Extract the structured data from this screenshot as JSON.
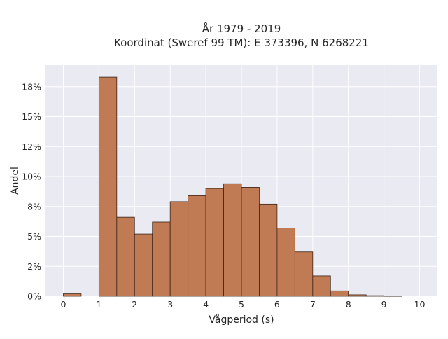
{
  "chart_data": {
    "type": "bar",
    "title_lines": [
      "År 1979 - 2019",
      "Koordinat (Sweref 99 TM): E 373396, N 6268221"
    ],
    "xlabel": "Vågperiod (s)",
    "ylabel": "Andel",
    "bin_width": 0.5,
    "xlim": [
      -0.5,
      10.5
    ],
    "ylim": [
      0,
      19.3
    ],
    "x_ticks": [
      0,
      1,
      2,
      3,
      4,
      5,
      6,
      7,
      8,
      9,
      10
    ],
    "y_ticks": [
      {
        "value": 0,
        "label": "0%"
      },
      {
        "value": 2.5,
        "label": "2%"
      },
      {
        "value": 5,
        "label": "5%"
      },
      {
        "value": 7.5,
        "label": "8%"
      },
      {
        "value": 10,
        "label": "10%"
      },
      {
        "value": 12.5,
        "label": "12%"
      },
      {
        "value": 15,
        "label": "15%"
      },
      {
        "value": 17.5,
        "label": "18%"
      }
    ],
    "bins": [
      {
        "start": 0.0,
        "value": 0.2
      },
      {
        "start": 0.5,
        "value": 0.0
      },
      {
        "start": 1.0,
        "value": 18.3
      },
      {
        "start": 1.5,
        "value": 6.6
      },
      {
        "start": 2.0,
        "value": 5.2
      },
      {
        "start": 2.5,
        "value": 6.2
      },
      {
        "start": 3.0,
        "value": 7.9
      },
      {
        "start": 3.5,
        "value": 8.4
      },
      {
        "start": 4.0,
        "value": 9.0
      },
      {
        "start": 4.5,
        "value": 9.4
      },
      {
        "start": 5.0,
        "value": 9.1
      },
      {
        "start": 5.5,
        "value": 7.7
      },
      {
        "start": 6.0,
        "value": 5.7
      },
      {
        "start": 6.5,
        "value": 3.7
      },
      {
        "start": 7.0,
        "value": 1.7
      },
      {
        "start": 7.5,
        "value": 0.45
      },
      {
        "start": 8.0,
        "value": 0.12
      },
      {
        "start": 8.5,
        "value": 0.05
      },
      {
        "start": 9.0,
        "value": 0.03
      }
    ],
    "bar_color": "#c07a54",
    "bar_edge_color": "#3a2418",
    "plot_background": "#eaeaf2",
    "grid": true
  }
}
